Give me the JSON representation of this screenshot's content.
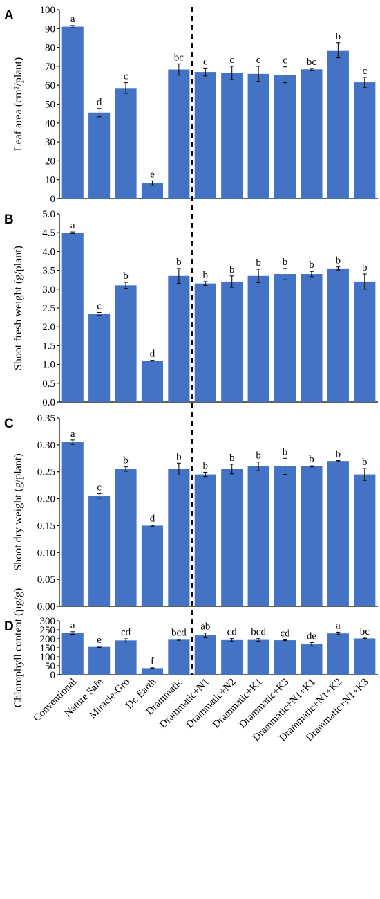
{
  "categories": [
    "Conventional",
    "Nature Safe",
    "Miracle-Gro",
    "Dr. Earth",
    "Drammatic",
    "Drammatic+N1",
    "Drammatic+N2",
    "Drammatic+K1",
    "Drammatic+K3",
    "Drammatic+N1+K1",
    "Drammatic+N1+K2",
    "Drammatic+N1+K3"
  ],
  "bar_color": "#4472c4",
  "chart_data": [
    {
      "type": "bar",
      "panel": "A",
      "ylabel": "Leaf area (cm²/plant)",
      "ylim": [
        0,
        100
      ],
      "yticks": [
        0,
        10,
        20,
        30,
        40,
        50,
        60,
        70,
        80,
        90,
        100
      ],
      "tick_labels": [
        "0",
        "10",
        "20",
        "30",
        "40",
        "50",
        "60",
        "70",
        "80",
        "90",
        "100"
      ],
      "values": [
        91,
        45.5,
        58.5,
        8.2,
        68.3,
        67,
        66.5,
        66,
        65.5,
        68.4,
        78.5,
        61.5
      ],
      "errors": [
        0.6,
        2.2,
        2.8,
        1.2,
        3,
        2.1,
        3.5,
        4,
        4.2,
        0.5,
        4,
        2.6
      ],
      "labels": [
        "a",
        "d",
        "c",
        "e",
        "bc",
        "c",
        "c",
        "c",
        "c",
        "bc",
        "b",
        "c"
      ]
    },
    {
      "type": "bar",
      "panel": "B",
      "ylabel": "Shoot fresh weight (g/plant)",
      "ylim": [
        0,
        5
      ],
      "yticks": [
        0,
        0.5,
        1,
        1.5,
        2,
        2.5,
        3,
        3.5,
        4,
        4.5,
        5
      ],
      "tick_labels": [
        "0.0",
        "0.5",
        "1.0",
        "1.5",
        "2.0",
        "2.5",
        "3.0",
        "3.5",
        "4.0",
        "4.5",
        "5.0"
      ],
      "values": [
        4.5,
        2.34,
        3.1,
        1.1,
        3.35,
        3.15,
        3.2,
        3.35,
        3.4,
        3.4,
        3.55,
        3.2
      ],
      "errors": [
        0.02,
        0.04,
        0.08,
        0.01,
        0.2,
        0.05,
        0.15,
        0.18,
        0.15,
        0.07,
        0.04,
        0.2
      ],
      "labels": [
        "a",
        "c",
        "b",
        "d",
        "b",
        "b",
        "b",
        "b",
        "b",
        "b",
        "b",
        "b"
      ]
    },
    {
      "type": "bar",
      "panel": "C",
      "ylabel": "Shoot dry weight (g/plant)",
      "ylim": [
        0,
        0.35
      ],
      "yticks": [
        0,
        0.05,
        0.1,
        0.15,
        0.2,
        0.25,
        0.3,
        0.35
      ],
      "tick_labels": [
        "0.00",
        "0.05",
        "0.10",
        "0.15",
        "0.20",
        "0.25",
        "0.30",
        "0.35"
      ],
      "values": [
        0.305,
        0.205,
        0.255,
        0.15,
        0.255,
        0.245,
        0.255,
        0.26,
        0.26,
        0.26,
        0.27,
        0.245
      ],
      "errors": [
        0.004,
        0.004,
        0.004,
        0.001,
        0.011,
        0.004,
        0.009,
        0.008,
        0.015,
        0.001,
        0.001,
        0.011
      ],
      "labels": [
        "a",
        "c",
        "b",
        "d",
        "b",
        "b",
        "b",
        "b",
        "b",
        "b",
        "b",
        "b"
      ]
    },
    {
      "type": "bar",
      "panel": "D",
      "ylabel": "Chlorophyll content (µg/g)",
      "ylim": [
        0,
        300
      ],
      "yticks": [
        0,
        50,
        100,
        150,
        200,
        250,
        300
      ],
      "tick_labels": [
        "0",
        "50",
        "100",
        "150",
        "200",
        "250",
        "300"
      ],
      "values": [
        232,
        155,
        191,
        37,
        195,
        219,
        193,
        194,
        192,
        169,
        230,
        202
      ],
      "errors": [
        7,
        3,
        9,
        2,
        3,
        13,
        8,
        7,
        2,
        10,
        7,
        2
      ],
      "labels": [
        "a",
        "e",
        "cd",
        "f",
        "bcd",
        "ab",
        "cd",
        "bcd",
        "cd",
        "de",
        "a",
        "bc"
      ]
    }
  ]
}
